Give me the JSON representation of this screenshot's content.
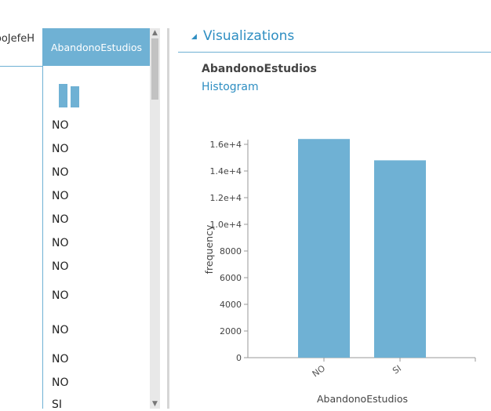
{
  "table": {
    "prev_column_header": "TipoJefeH",
    "column_header": "AbandonoEstudios",
    "values": [
      "NO",
      "NO",
      "NO",
      "NO",
      "NO",
      "NO",
      "NO",
      "NO",
      "NO",
      "NO",
      "NO",
      "SI"
    ]
  },
  "visualizations": {
    "title": "Visualizations",
    "column_name": "AbandonoEstudios",
    "chart_type_label": "Histogram"
  },
  "chart_data": {
    "type": "bar",
    "categories": [
      "NO",
      "SI"
    ],
    "values": [
      16400,
      14800
    ],
    "xlabel": "AbandonoEstudios",
    "ylabel": "frequency",
    "ylim": [
      0,
      16000
    ],
    "yticks": [
      "0",
      "2000",
      "4000",
      "6000",
      "8000",
      "1.0e+4",
      "1.2e+4",
      "1.4e+4",
      "1.6e+4"
    ],
    "color": "#6fb1d4"
  }
}
